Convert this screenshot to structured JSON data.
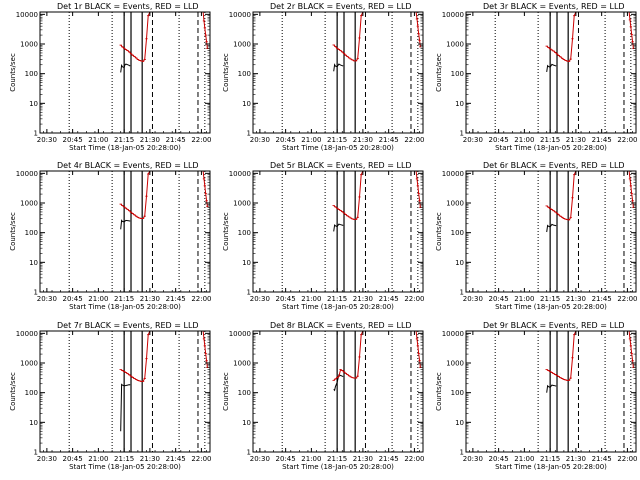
{
  "colors": {
    "events": "#000000",
    "lld": "#cc0000",
    "background": "#ffffff"
  },
  "shared": {
    "type": "line",
    "x_axis_label": "Start Time (18-Jan-05 20:28:00)",
    "y_axis_label": "Counts/sec",
    "y_scale": "log",
    "ylim": [
      1,
      12000
    ],
    "xlim_minutes": [
      -2,
      97
    ],
    "x_tick_labels": [
      "20:30",
      "20:45",
      "21:00",
      "21:15",
      "21:30",
      "21:45",
      "22:00"
    ],
    "x_tick_minutes": [
      2,
      17,
      32,
      47,
      62,
      77,
      92
    ],
    "y_tick_labels": [
      "1",
      "10",
      "100",
      "1000",
      "10000"
    ],
    "y_tick_values": [
      1,
      10,
      100,
      1000,
      10000
    ],
    "dotted_lines_minutes": [
      15,
      40,
      79,
      94
    ],
    "solid_lines_minutes": [
      47,
      51,
      57.5
    ],
    "dashed_lines_minutes": [
      63.5,
      90
    ]
  },
  "chart_data": [
    {
      "title": "Det 1r BLACK = Events, RED = LLD",
      "black_series": [
        [
          45,
          110
        ],
        [
          45.5,
          190
        ],
        [
          46,
          170
        ],
        [
          47,
          160
        ],
        [
          47.5,
          200
        ],
        [
          48,
          210
        ],
        [
          49,
          200
        ],
        [
          50,
          190
        ],
        [
          50.5,
          180
        ]
      ],
      "red_series": [
        [
          45,
          920
        ],
        [
          46,
          800
        ],
        [
          47,
          720
        ],
        [
          48,
          650
        ],
        [
          49,
          600
        ],
        [
          50,
          540
        ],
        [
          51,
          470
        ],
        [
          52,
          420
        ],
        [
          53,
          380
        ],
        [
          54,
          340
        ],
        [
          55,
          300
        ],
        [
          56,
          280
        ],
        [
          57,
          270
        ],
        [
          58,
          260
        ],
        [
          59,
          300
        ],
        [
          60,
          1500
        ],
        [
          61,
          9000
        ],
        [
          62,
          12000
        ],
        [
          93,
          12000
        ],
        [
          93.5,
          6000
        ],
        [
          94,
          3500
        ],
        [
          94.5,
          2000
        ],
        [
          95,
          1200
        ],
        [
          95.5,
          700
        ]
      ]
    },
    {
      "title": "Det 2r BLACK = Events, RED = LLD",
      "black_series": [
        [
          45,
          120
        ],
        [
          45.5,
          200
        ],
        [
          46,
          180
        ],
        [
          47,
          170
        ],
        [
          48,
          210
        ],
        [
          49,
          195
        ],
        [
          50,
          185
        ],
        [
          50.5,
          180
        ]
      ],
      "red_series": [
        [
          45,
          930
        ],
        [
          46,
          820
        ],
        [
          47,
          720
        ],
        [
          48,
          660
        ],
        [
          49,
          600
        ],
        [
          50,
          540
        ],
        [
          51,
          480
        ],
        [
          52,
          420
        ],
        [
          53,
          380
        ],
        [
          54,
          340
        ],
        [
          55,
          310
        ],
        [
          56,
          290
        ],
        [
          57,
          270
        ],
        [
          58,
          270
        ],
        [
          59,
          320
        ],
        [
          60,
          1600
        ],
        [
          61,
          9000
        ],
        [
          62,
          12000
        ],
        [
          93,
          12000
        ],
        [
          93.5,
          7000
        ],
        [
          94,
          4000
        ],
        [
          94.5,
          2200
        ],
        [
          95,
          1300
        ],
        [
          95.5,
          800
        ]
      ]
    },
    {
      "title": "Det 3r BLACK = Events, RED = LLD",
      "black_series": [
        [
          45,
          115
        ],
        [
          45.5,
          185
        ],
        [
          46,
          175
        ],
        [
          47,
          165
        ],
        [
          48,
          205
        ],
        [
          49,
          195
        ],
        [
          50,
          185
        ],
        [
          50.5,
          180
        ]
      ],
      "red_series": [
        [
          45,
          850
        ],
        [
          46,
          760
        ],
        [
          47,
          690
        ],
        [
          48,
          630
        ],
        [
          49,
          580
        ],
        [
          50,
          520
        ],
        [
          51,
          460
        ],
        [
          52,
          410
        ],
        [
          53,
          370
        ],
        [
          54,
          330
        ],
        [
          55,
          300
        ],
        [
          56,
          280
        ],
        [
          57,
          265
        ],
        [
          58,
          260
        ],
        [
          59,
          310
        ],
        [
          60,
          1500
        ],
        [
          61,
          9000
        ],
        [
          62,
          12000
        ],
        [
          93,
          12000
        ],
        [
          93.5,
          6500
        ],
        [
          94,
          3800
        ],
        [
          94.5,
          2100
        ],
        [
          95,
          1200
        ],
        [
          95.5,
          700
        ]
      ]
    },
    {
      "title": "Det 4r BLACK = Events, RED = LLD",
      "black_series": [
        [
          45,
          130
        ],
        [
          45.5,
          260
        ],
        [
          46,
          240
        ],
        [
          47,
          230
        ],
        [
          48,
          260
        ],
        [
          49,
          255
        ],
        [
          50,
          250
        ],
        [
          50.5,
          245
        ]
      ],
      "red_series": [
        [
          45,
          920
        ],
        [
          46,
          820
        ],
        [
          47,
          740
        ],
        [
          48,
          670
        ],
        [
          49,
          610
        ],
        [
          50,
          550
        ],
        [
          51,
          490
        ],
        [
          52,
          440
        ],
        [
          53,
          400
        ],
        [
          54,
          360
        ],
        [
          55,
          330
        ],
        [
          56,
          310
        ],
        [
          57,
          300
        ],
        [
          58,
          300
        ],
        [
          59,
          360
        ],
        [
          60,
          1700
        ],
        [
          61,
          9500
        ],
        [
          62,
          12000
        ],
        [
          93,
          12000
        ],
        [
          93.5,
          6500
        ],
        [
          94,
          3800
        ],
        [
          94.5,
          2100
        ],
        [
          95,
          1200
        ],
        [
          95.5,
          750
        ]
      ]
    },
    {
      "title": "Det 5r BLACK = Events, RED = LLD",
      "black_series": [
        [
          45,
          110
        ],
        [
          45.5,
          180
        ],
        [
          46,
          170
        ],
        [
          47,
          160
        ],
        [
          48,
          195
        ],
        [
          49,
          185
        ],
        [
          50,
          180
        ],
        [
          50.5,
          175
        ]
      ],
      "red_series": [
        [
          45,
          820
        ],
        [
          46,
          740
        ],
        [
          47,
          670
        ],
        [
          48,
          610
        ],
        [
          49,
          560
        ],
        [
          50,
          510
        ],
        [
          51,
          460
        ],
        [
          52,
          410
        ],
        [
          53,
          370
        ],
        [
          54,
          340
        ],
        [
          55,
          310
        ],
        [
          56,
          290
        ],
        [
          57,
          280
        ],
        [
          58,
          280
        ],
        [
          59,
          330
        ],
        [
          60,
          1600
        ],
        [
          61,
          9000
        ],
        [
          62,
          12000
        ],
        [
          93,
          12000
        ],
        [
          93.5,
          6500
        ],
        [
          94,
          3800
        ],
        [
          94.5,
          2100
        ],
        [
          95,
          1200
        ],
        [
          95.5,
          700
        ]
      ]
    },
    {
      "title": "Det 6r BLACK = Events, RED = LLD",
      "black_series": [
        [
          45,
          105
        ],
        [
          45.5,
          175
        ],
        [
          46,
          165
        ],
        [
          47,
          155
        ],
        [
          48,
          190
        ],
        [
          49,
          180
        ],
        [
          50,
          175
        ],
        [
          50.5,
          170
        ]
      ],
      "red_series": [
        [
          45,
          800
        ],
        [
          46,
          720
        ],
        [
          47,
          650
        ],
        [
          48,
          600
        ],
        [
          49,
          550
        ],
        [
          50,
          500
        ],
        [
          51,
          450
        ],
        [
          52,
          400
        ],
        [
          53,
          360
        ],
        [
          54,
          330
        ],
        [
          55,
          300
        ],
        [
          56,
          285
        ],
        [
          57,
          275
        ],
        [
          58,
          270
        ],
        [
          59,
          320
        ],
        [
          60,
          1500
        ],
        [
          61,
          9000
        ],
        [
          62,
          12000
        ],
        [
          93,
          12000
        ],
        [
          93.5,
          6500
        ],
        [
          94,
          3800
        ],
        [
          94.5,
          2100
        ],
        [
          95,
          1200
        ],
        [
          95.5,
          700
        ]
      ]
    },
    {
      "title": "Det 7r BLACK = Events, RED = LLD",
      "black_series": [
        [
          45,
          5
        ],
        [
          45.5,
          190
        ],
        [
          46,
          180
        ],
        [
          47,
          170
        ],
        [
          48,
          175
        ],
        [
          49,
          180
        ],
        [
          50,
          185
        ],
        [
          50.5,
          180
        ]
      ],
      "red_series": [
        [
          45,
          600
        ],
        [
          46,
          560
        ],
        [
          47,
          520
        ],
        [
          48,
          480
        ],
        [
          49,
          440
        ],
        [
          50,
          400
        ],
        [
          51,
          360
        ],
        [
          52,
          330
        ],
        [
          53,
          300
        ],
        [
          54,
          280
        ],
        [
          55,
          260
        ],
        [
          56,
          250
        ],
        [
          57,
          240
        ],
        [
          58,
          240
        ],
        [
          59,
          300
        ],
        [
          60,
          1400
        ],
        [
          61,
          9000
        ],
        [
          62,
          12000
        ],
        [
          93,
          12000
        ],
        [
          93.5,
          6500
        ],
        [
          94,
          3800
        ],
        [
          94.5,
          2100
        ],
        [
          95,
          1200
        ],
        [
          95.5,
          700
        ]
      ]
    },
    {
      "title": "Det 8r BLACK = Events, RED = LLD",
      "black_series": [
        [
          45,
          130
        ],
        [
          45.5,
          120
        ],
        [
          46,
          160
        ],
        [
          47,
          220
        ],
        [
          48,
          400
        ],
        [
          49,
          380
        ],
        [
          50,
          360
        ],
        [
          50.5,
          350
        ]
      ],
      "red_series": [
        [
          45,
          260
        ],
        [
          46,
          290
        ],
        [
          47,
          320
        ],
        [
          48,
          360
        ],
        [
          49,
          600
        ],
        [
          50,
          560
        ],
        [
          51,
          500
        ],
        [
          52,
          450
        ],
        [
          53,
          410
        ],
        [
          54,
          370
        ],
        [
          55,
          340
        ],
        [
          56,
          320
        ],
        [
          57,
          310
        ],
        [
          58,
          310
        ],
        [
          59,
          360
        ],
        [
          60,
          1600
        ],
        [
          61,
          9000
        ],
        [
          62,
          12000
        ],
        [
          93,
          12000
        ],
        [
          93.5,
          6500
        ],
        [
          94,
          3800
        ],
        [
          94.5,
          2100
        ],
        [
          95,
          1200
        ],
        [
          95.5,
          700
        ]
      ]
    },
    {
      "title": "Det 9r BLACK = Events, RED = LLD",
      "black_series": [
        [
          45,
          100
        ],
        [
          45.5,
          170
        ],
        [
          46,
          160
        ],
        [
          47,
          150
        ],
        [
          48,
          180
        ],
        [
          49,
          175
        ],
        [
          50,
          170
        ],
        [
          50.5,
          165
        ]
      ],
      "red_series": [
        [
          45,
          600
        ],
        [
          46,
          560
        ],
        [
          47,
          520
        ],
        [
          48,
          480
        ],
        [
          49,
          440
        ],
        [
          50,
          410
        ],
        [
          51,
          380
        ],
        [
          52,
          350
        ],
        [
          53,
          320
        ],
        [
          54,
          300
        ],
        [
          55,
          280
        ],
        [
          56,
          270
        ],
        [
          57,
          260
        ],
        [
          58,
          260
        ],
        [
          59,
          310
        ],
        [
          60,
          1500
        ],
        [
          61,
          9000
        ],
        [
          62,
          12000
        ],
        [
          93,
          12000
        ],
        [
          93.5,
          6500
        ],
        [
          94,
          3800
        ],
        [
          94.5,
          2100
        ],
        [
          95,
          1200
        ],
        [
          95.5,
          700
        ]
      ]
    }
  ]
}
